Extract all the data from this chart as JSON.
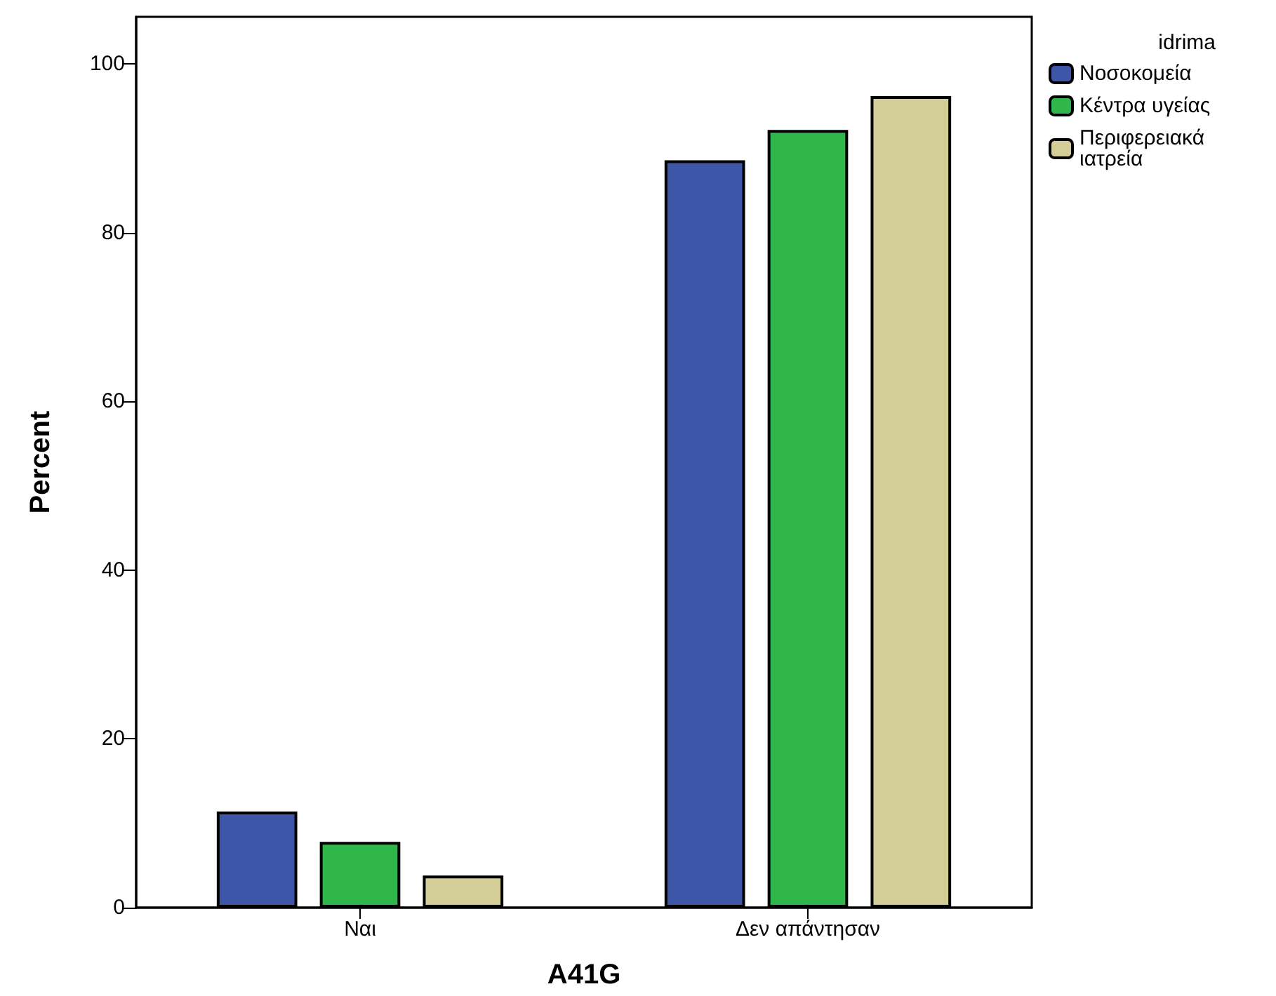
{
  "chart_data": {
    "type": "bar",
    "xlabel": "A41G",
    "ylabel": "Percent",
    "legend_title": "idrima",
    "categories": [
      "Ναι",
      "Δεν απάντησαν"
    ],
    "series": [
      {
        "name": "Νοσοκομεία",
        "color": "#3d56a8",
        "values": [
          11.4,
          88.6
        ]
      },
      {
        "name": "Κέντρα υγείας",
        "color": "#2fb74a",
        "values": [
          7.8,
          92.2
        ]
      },
      {
        "name": "Περιφερειακά ιατρεία",
        "color": "#d3ce98",
        "values": [
          3.8,
          96.2
        ]
      }
    ],
    "ylim": [
      0,
      105.6
    ],
    "yticks": [
      0,
      20,
      40,
      60,
      80,
      100
    ],
    "grid": false,
    "legend": "right"
  }
}
